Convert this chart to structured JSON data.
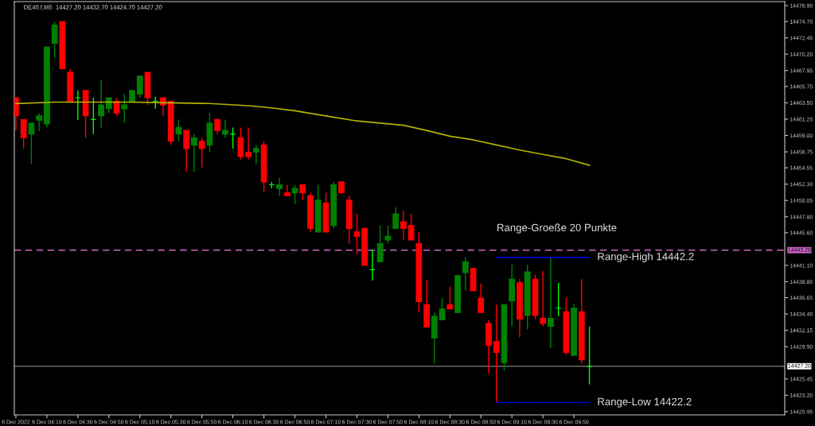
{
  "chart_data": {
    "type": "candlestick",
    "title": "DE40.f,M5  14427.20 14432.70 14424.70 14427.20",
    "annotations": [
      "Range-Groeße 20 Punkte"
    ],
    "x": [
      "2022-12-06T03:50",
      "2022-12-06T03:55",
      "2022-12-06T04:00",
      "2022-12-06T04:05",
      "2022-12-06T04:10",
      "2022-12-06T04:15",
      "2022-12-06T04:20",
      "2022-12-06T04:25",
      "2022-12-06T04:30",
      "2022-12-06T04:35",
      "2022-12-06T04:40",
      "2022-12-06T04:45",
      "2022-12-06T04:50",
      "2022-12-06T04:55",
      "2022-12-06T05:00",
      "2022-12-06T05:05",
      "2022-12-06T05:10",
      "2022-12-06T05:15",
      "2022-12-06T05:20",
      "2022-12-06T05:25",
      "2022-12-06T05:30",
      "2022-12-06T05:35",
      "2022-12-06T05:40",
      "2022-12-06T05:45",
      "2022-12-06T05:50",
      "2022-12-06T05:55",
      "2022-12-06T06:00",
      "2022-12-06T06:05",
      "2022-12-06T06:10",
      "2022-12-06T06:15",
      "2022-12-06T06:20",
      "2022-12-06T06:25",
      "2022-12-06T06:30",
      "2022-12-06T06:35",
      "2022-12-06T06:40",
      "2022-12-06T06:45",
      "2022-12-06T06:50",
      "2022-12-06T06:55",
      "2022-12-06T07:00",
      "2022-12-06T07:05",
      "2022-12-06T07:10",
      "2022-12-06T07:15",
      "2022-12-06T07:20",
      "2022-12-06T07:25",
      "2022-12-06T07:30",
      "2022-12-06T07:35",
      "2022-12-06T07:40",
      "2022-12-06T07:45",
      "2022-12-06T07:50",
      "2022-12-06T07:55",
      "2022-12-06T08:00",
      "2022-12-06T08:05",
      "2022-12-06T08:10",
      "2022-12-06T08:15",
      "2022-12-06T08:20",
      "2022-12-06T08:25",
      "2022-12-06T08:30",
      "2022-12-06T08:35",
      "2022-12-06T08:40",
      "2022-12-06T08:45",
      "2022-12-06T08:50",
      "2022-12-06T08:55",
      "2022-12-06T09:00",
      "2022-12-06T09:05",
      "2022-12-06T09:10",
      "2022-12-06T09:15",
      "2022-12-06T09:20",
      "2022-12-06T09:25",
      "2022-12-06T09:30",
      "2022-12-06T09:35",
      "2022-12-06T09:40",
      "2022-12-06T09:45",
      "2022-12-06T09:50",
      "2022-12-06T09:55",
      "2022-12-06T10:00"
    ],
    "ohlc": [
      [
        14464.2,
        14464.3,
        14459.7,
        14461.7
      ],
      [
        14461.2,
        14461.2,
        14457.2,
        14458.7
      ],
      [
        14459.2,
        14460.7,
        14455.1,
        14460.7
      ],
      [
        14461.1,
        14462.1,
        14459.6,
        14461.7
      ],
      [
        14460.6,
        14471.2,
        14460.1,
        14471.2
      ],
      [
        14471.7,
        14474.7,
        14469.7,
        14474.2
      ],
      [
        14474.7,
        14474.7,
        14468.2,
        14468.2
      ],
      [
        14467.7,
        14468.2,
        14463.7,
        14463.7
      ],
      [
        14464.2,
        14465.2,
        14461.1,
        14464.2
      ],
      [
        14465.2,
        14465.2,
        14458.7,
        14461.7
      ],
      [
        14461.2,
        14464.2,
        14459.2,
        14461.2
      ],
      [
        14461.7,
        14466.7,
        14460.1,
        14463.2
      ],
      [
        14462.7,
        14464.2,
        14462.1,
        14464.2
      ],
      [
        14463.7,
        14464.2,
        14461.7,
        14462.1
      ],
      [
        14462.7,
        14464.7,
        14460.7,
        14463.2
      ],
      [
        14463.7,
        14465.2,
        14463.7,
        14465.2
      ],
      [
        14464.7,
        14467.2,
        14464.2,
        14467.2
      ],
      [
        14467.7,
        14467.7,
        14463.2,
        14464.2
      ],
      [
        14463.7,
        14464.3,
        14462.7,
        14463.7
      ],
      [
        14464.2,
        14464.2,
        14461.7,
        14463.2
      ],
      [
        14463.7,
        14463.7,
        14457.7,
        14458.2
      ],
      [
        14459.2,
        14461.2,
        14458.2,
        14460.1
      ],
      [
        14459.7,
        14459.7,
        14454.0,
        14457.2
      ],
      [
        14457.7,
        14459.2,
        14454.0,
        14458.7
      ],
      [
        14458.2,
        14458.7,
        14454.6,
        14457.2
      ],
      [
        14457.7,
        14462.1,
        14456.7,
        14460.7
      ],
      [
        14461.2,
        14461.2,
        14459.2,
        14459.7
      ],
      [
        14459.2,
        14461.2,
        14458.7,
        14459.7
      ],
      [
        14459.2,
        14460.1,
        14457.2,
        14459.2
      ],
      [
        14458.7,
        14460.1,
        14455.7,
        14456.1
      ],
      [
        14456.7,
        14460.1,
        14455.7,
        14456.1
      ],
      [
        14456.7,
        14457.7,
        14455.1,
        14457.2
      ],
      [
        14457.7,
        14458.2,
        14451.2,
        14452.6
      ],
      [
        14452.2,
        14452.6,
        14451.7,
        14452.2
      ],
      [
        14451.7,
        14453.2,
        14450.7,
        14452.2
      ],
      [
        14451.1,
        14452.2,
        14450.7,
        14450.7
      ],
      [
        14451.1,
        14452.2,
        14449.6,
        14451.7
      ],
      [
        14452.2,
        14452.2,
        14450.1,
        14451.1
      ],
      [
        14450.7,
        14451.1,
        14445.7,
        14446.2
      ],
      [
        14445.7,
        14452.2,
        14445.7,
        14450.1
      ],
      [
        14449.7,
        14451.1,
        14445.7,
        14445.7
      ],
      [
        14446.6,
        14452.6,
        14446.2,
        14452.2
      ],
      [
        14452.6,
        14452.6,
        14451.1,
        14451.1
      ],
      [
        14450.1,
        14450.7,
        14444.1,
        14446.2
      ],
      [
        14445.7,
        14448.2,
        14442.6,
        14445.1
      ],
      [
        14446.2,
        14446.2,
        14441.1,
        14441.1
      ],
      [
        14440.5,
        14443.2,
        14439.0,
        14440.5
      ],
      [
        14441.6,
        14446.6,
        14441.6,
        14444.1
      ],
      [
        14444.6,
        14446.6,
        14444.1,
        14445.1
      ],
      [
        14446.2,
        14449.1,
        14446.2,
        14448.2
      ],
      [
        14447.1,
        14448.6,
        14444.6,
        14446.2
      ],
      [
        14446.6,
        14448.2,
        14444.6,
        14444.6
      ],
      [
        14444.1,
        14445.7,
        14434.6,
        14436.1
      ],
      [
        14435.7,
        14439.1,
        14432.6,
        14432.6
      ],
      [
        14431.1,
        14434.6,
        14427.6,
        14434.1
      ],
      [
        14433.6,
        14436.6,
        14433.6,
        14435.1
      ],
      [
        14435.7,
        14438.2,
        14435.1,
        14435.1
      ],
      [
        14434.6,
        14439.7,
        14434.6,
        14439.7
      ],
      [
        14440.1,
        14442.2,
        14437.6,
        14441.6
      ],
      [
        14440.7,
        14440.7,
        14437.6,
        14437.6
      ],
      [
        14436.6,
        14438.6,
        14434.6,
        14434.6
      ],
      [
        14433.1,
        14433.6,
        14426.2,
        14430.1
      ],
      [
        14430.6,
        14435.7,
        14422.2,
        14429.1
      ],
      [
        14427.7,
        14435.7,
        14426.6,
        14435.7
      ],
      [
        14436.2,
        14441.2,
        14432.7,
        14439.2
      ],
      [
        14438.7,
        14439.2,
        14431.2,
        14433.7
      ],
      [
        14434.2,
        14441.2,
        14432.3,
        14440.2
      ],
      [
        14439.2,
        14439.8,
        14433.7,
        14434.2
      ],
      [
        14433.8,
        14440.3,
        14432.7,
        14433.1
      ],
      [
        14432.7,
        14442.2,
        14429.7,
        14433.8
      ],
      [
        14435.2,
        14438.7,
        14434.1,
        14435.2
      ],
      [
        14434.7,
        14436.7,
        14428.7,
        14429.1
      ],
      [
        14428.7,
        14435.8,
        14428.7,
        14435.2
      ],
      [
        14434.7,
        14439.2,
        14427.6,
        14428.1
      ],
      [
        14427.2,
        14432.7,
        14424.7,
        14427.2
      ]
    ],
    "colors": [
      "#ff0000",
      "#ff0000",
      "#008000",
      "#008000",
      "#008000",
      "#008000",
      "#ff0000",
      "#ff0000",
      "#00ff00",
      "#ff0000",
      "#00ff00",
      "#008000",
      "#008000",
      "#ff0000",
      "#008000",
      "#008000",
      "#008000",
      "#ff0000",
      "#00ff00",
      "#ff0000",
      "#ff0000",
      "#008000",
      "#ff0000",
      "#008000",
      "#ff0000",
      "#008000",
      "#ff0000",
      "#008000",
      "#00ff00",
      "#ff0000",
      "#ff0000",
      "#008000",
      "#ff0000",
      "#00ff00",
      "#008000",
      "#ff0000",
      "#008000",
      "#ff0000",
      "#ff0000",
      "#008000",
      "#ff0000",
      "#008000",
      "#ff0000",
      "#ff0000",
      "#ff0000",
      "#ff0000",
      "#00ff00",
      "#008000",
      "#008000",
      "#008000",
      "#ff0000",
      "#ff0000",
      "#ff0000",
      "#ff0000",
      "#008000",
      "#008000",
      "#ff0000",
      "#008000",
      "#008000",
      "#ff0000",
      "#ff0000",
      "#ff0000",
      "#ff0000",
      "#008000",
      "#008000",
      "#ff0000",
      "#008000",
      "#ff0000",
      "#ff0000",
      "#008000",
      "#00ff00",
      "#ff0000",
      "#008000",
      "#ff0000",
      "#00ff00"
    ],
    "series": [
      {
        "type": "line",
        "color": "#b4b400",
        "x": [
          "2022-12-06T03:50",
          "2022-12-06T04:15",
          "2022-12-06T04:40",
          "2022-12-06T05:05",
          "2022-12-06T05:30",
          "2022-12-06T05:55",
          "2022-12-06T06:20",
          "2022-12-06T06:35",
          "2022-12-06T06:50",
          "2022-12-06T07:10",
          "2022-12-06T07:30",
          "2022-12-06T07:45",
          "2022-12-06T08:00",
          "2022-12-06T08:15",
          "2022-12-06T08:30",
          "2022-12-06T08:45",
          "2022-12-06T09:00",
          "2022-12-06T09:15",
          "2022-12-06T09:30",
          "2022-12-06T09:45",
          "2022-12-06T10:00"
        ],
        "values": [
          14463.4,
          14463.6,
          14463.6,
          14463.6,
          14463.5,
          14463.4,
          14463.1,
          14462.8,
          14462.4,
          14461.7,
          14461.0,
          14460.7,
          14460.4,
          14459.7,
          14458.9,
          14458.4,
          14457.7,
          14457.0,
          14456.4,
          14455.8,
          14454.9
        ]
      },
      {
        "type": "line",
        "name": "Range-High 14442.2",
        "color": "#0000cc",
        "x": [
          "2022-12-06T09:00",
          "2022-12-06T10:00"
        ],
        "values": [
          14442.2,
          14442.2
        ]
      },
      {
        "type": "line",
        "name": "Range-Low 14422.2",
        "color": "#0000cc",
        "x": [
          "2022-12-06T09:00",
          "2022-12-06T10:00"
        ],
        "values": [
          14422.2,
          14422.2
        ]
      }
    ],
    "ref_lines": [
      {
        "axis": "y",
        "value": 14443.2,
        "label": "14443.20",
        "color": "#cc66cc",
        "line_style": "dashed"
      },
      {
        "axis": "y",
        "value": 14427.2,
        "label": "14427.20",
        "color": "#808080",
        "line_style": "solid"
      }
    ],
    "xlim": [
      "2022-12-06T03:49",
      "2022-12-06T12:06"
    ],
    "xticks": [
      {
        "value": "2022-12-06T03:50",
        "label": "6 Dec 2022"
      },
      {
        "value": "2022-12-06T04:10",
        "label": "6 Dec 04:10"
      },
      {
        "value": "2022-12-06T04:30",
        "label": "6 Dec 04:30"
      },
      {
        "value": "2022-12-06T04:50",
        "label": "6 Dec 04:50"
      },
      {
        "value": "2022-12-06T05:10",
        "label": "6 Dec 05:10"
      },
      {
        "value": "2022-12-06T05:30",
        "label": "6 Dec 05:30"
      },
      {
        "value": "2022-12-06T05:50",
        "label": "6 Dec 05:50"
      },
      {
        "value": "2022-12-06T06:10",
        "label": "6 Dec 06:10"
      },
      {
        "value": "2022-12-06T06:30",
        "label": "6 Dec 06:30"
      },
      {
        "value": "2022-12-06T06:50",
        "label": "6 Dec 06:50"
      },
      {
        "value": "2022-12-06T07:10",
        "label": "6 Dec 07:10"
      },
      {
        "value": "2022-12-06T07:30",
        "label": "6 Dec 07:30"
      },
      {
        "value": "2022-12-06T07:50",
        "label": "6 Dec 07:50"
      },
      {
        "value": "2022-12-06T08:10",
        "label": "6 Dec 08:10"
      },
      {
        "value": "2022-12-06T08:30",
        "label": "6 Dec 08:30"
      },
      {
        "value": "2022-12-06T08:50",
        "label": "6 Dec 08:50"
      },
      {
        "value": "2022-12-06T09:10",
        "label": "6 Dec 09:10"
      },
      {
        "value": "2022-12-06T09:30",
        "label": "6 Dec 09:30"
      },
      {
        "value": "2022-12-06T09:50",
        "label": "6 Dec 09:50"
      }
    ],
    "ylim": [
      14420.5,
      14477.45
    ],
    "yticks": [
      {
        "value": 14476.9,
        "label": "14476.90"
      },
      {
        "value": 14474.7,
        "label": "14474.70"
      },
      14472.45,
      {
        "value": 14470.2,
        "label": "14470.20"
      },
      14467.95,
      14465.75,
      {
        "value": 14463.5,
        "label": "14463.50"
      },
      14461.25,
      {
        "value": 14459.0,
        "label": "14459.00"
      },
      14456.75,
      14454.55,
      {
        "value": 14452.3,
        "label": "14452.30"
      },
      14450.05,
      {
        "value": 14447.8,
        "label": "14447.80"
      },
      {
        "value": 14445.6,
        "label": "14445.60"
      },
      {
        "value": 14441.1,
        "label": "14441.10"
      },
      14438.85,
      14436.65,
      {
        "value": 14434.4,
        "label": "14434.40"
      },
      14432.15,
      {
        "value": 14429.9,
        "label": "14429.90"
      },
      14425.45,
      {
        "value": 14423.2,
        "label": "14423.20"
      },
      14420.95
    ]
  }
}
